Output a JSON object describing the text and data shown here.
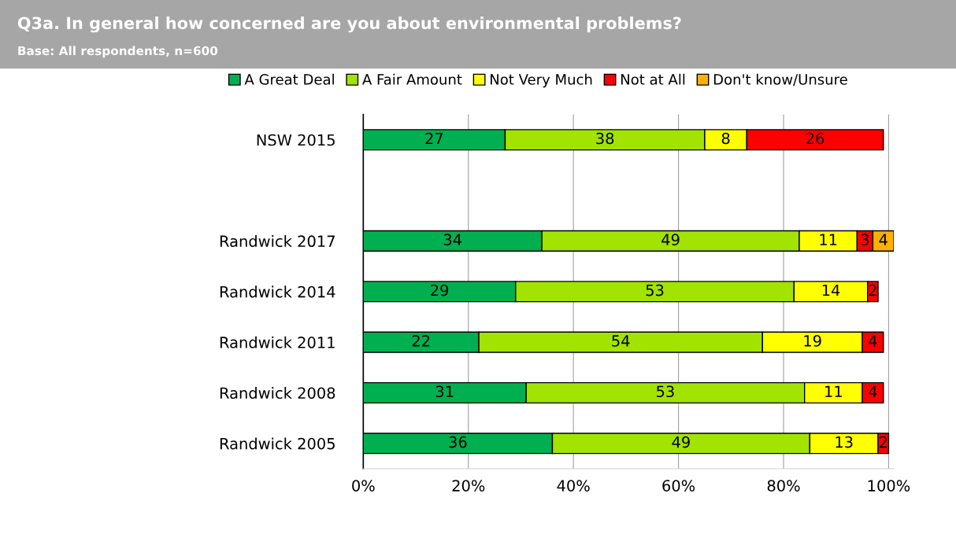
{
  "chart_data": {
    "type": "bar",
    "orientation": "horizontal",
    "stacked": true,
    "title": "Q3a. In general how concerned are you about environmental problems?",
    "subtitle": "Base: All respondents, n=600",
    "categories": [
      "NSW 2015",
      null,
      "Randwick 2017",
      "Randwick 2014",
      "Randwick 2011",
      "Randwick 2008",
      "Randwick 2005"
    ],
    "series": [
      {
        "name": "A Great Deal",
        "color": "#00b050",
        "values": [
          27,
          null,
          34,
          29,
          22,
          31,
          36
        ]
      },
      {
        "name": "A Fair Amount",
        "color": "#a3e300",
        "values": [
          38,
          null,
          49,
          53,
          54,
          53,
          49
        ]
      },
      {
        "name": "Not Very Much",
        "color": "#ffff00",
        "values": [
          8,
          null,
          11,
          14,
          19,
          11,
          13
        ]
      },
      {
        "name": "Not at All",
        "color": "#ff0000",
        "values": [
          26,
          null,
          3,
          2,
          4,
          4,
          2
        ]
      },
      {
        "name": "Don't know/Unsure",
        "color": "#ffb000",
        "values": [
          null,
          null,
          4,
          null,
          null,
          null,
          null
        ]
      }
    ],
    "xlim": [
      0,
      101
    ],
    "xticks": [
      {
        "value": 0,
        "label": "0%"
      },
      {
        "value": 20,
        "label": "20%"
      },
      {
        "value": 40,
        "label": "40%"
      },
      {
        "value": 60,
        "label": "60%"
      },
      {
        "value": 80,
        "label": "80%"
      },
      {
        "value": 100,
        "label": "100%"
      }
    ],
    "grid": "x",
    "legend": "top",
    "data_labels": true
  }
}
